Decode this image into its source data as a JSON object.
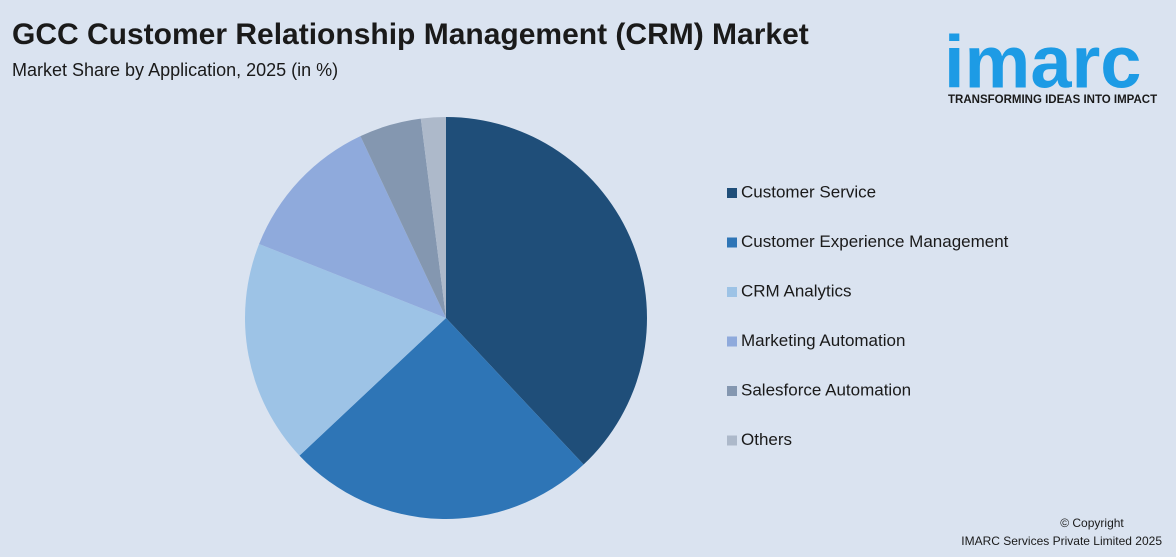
{
  "chart_data": {
    "type": "pie",
    "title": "GCC Customer Relationship Management (CRM) Market",
    "subtitle": "Market Share by Application, 2025 (in %)",
    "categories": [
      "Customer Service",
      "Customer Experience Management",
      "CRM Analytics",
      "Marketing Automation",
      "Salesforce Automation",
      "Others"
    ],
    "values": [
      38,
      25,
      18,
      12,
      5,
      2
    ],
    "colors": [
      "#1f4e79",
      "#2e75b6",
      "#9dc3e6",
      "#8faadc",
      "#8497b0",
      "#adb9ca"
    ],
    "legend": "right"
  },
  "logo": {
    "name": "imarc",
    "tagline": "TRANSFORMING IDEAS INTO IMPACT"
  },
  "footer": {
    "line1": "© Copyright",
    "line2": "IMARC Services Private Limited 2025"
  }
}
